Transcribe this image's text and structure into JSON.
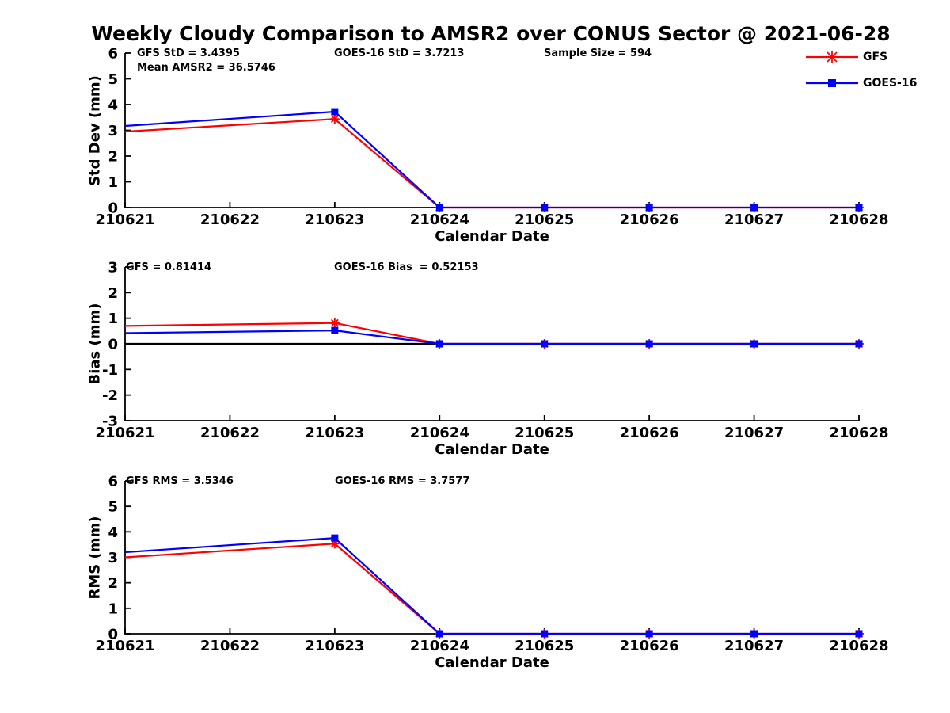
{
  "title": "Weekly Cloudy Comparison to AMSR2 over CONUS Sector @ 2021-06-28",
  "colors": {
    "gfs": "#ff0000",
    "goes16": "#0000ff",
    "axis": "#000000"
  },
  "legend": {
    "position": "top-right-outside",
    "entries": [
      {
        "label": "GFS",
        "color": "#ff0000",
        "marker": "asterisk"
      },
      {
        "label": "GOES-16",
        "color": "#0000ff",
        "marker": "square"
      }
    ]
  },
  "chart_data": [
    {
      "type": "line",
      "id": "stddev",
      "xlabel": "Calendar Date",
      "ylabel": "Std Dev (mm)",
      "categories": [
        "210621",
        "210622",
        "210623",
        "210624",
        "210625",
        "210626",
        "210627",
        "210628"
      ],
      "ylim": [
        0,
        6
      ],
      "yticks": [
        0,
        1,
        2,
        3,
        4,
        5,
        6
      ],
      "grid": false,
      "zero_line": false,
      "annotations": [
        "GFS StD = 3.4395",
        "Mean AMSR2 = 36.5746",
        "GOES-16 StD = 3.7213",
        "Sample Size = 594"
      ],
      "series": [
        {
          "name": "GFS",
          "color": "#ff0000",
          "marker": "asterisk",
          "first_point_marker": false,
          "values": [
            2.95,
            null,
            3.4395,
            0,
            0,
            0,
            0,
            0
          ]
        },
        {
          "name": "GOES-16",
          "color": "#0000ff",
          "marker": "square",
          "first_point_marker": false,
          "values": [
            3.17,
            null,
            3.7213,
            0,
            0,
            0,
            0,
            0
          ]
        }
      ]
    },
    {
      "type": "line",
      "id": "bias",
      "xlabel": "Calendar Date",
      "ylabel": "Bias (mm)",
      "categories": [
        "210621",
        "210622",
        "210623",
        "210624",
        "210625",
        "210626",
        "210627",
        "210628"
      ],
      "ylim": [
        -3,
        3
      ],
      "yticks": [
        3,
        2,
        1,
        0,
        -1,
        -2,
        -3
      ],
      "grid": false,
      "zero_line": true,
      "annotations": [
        "GFS = 0.81414",
        "GOES-16 Bias  = 0.52153"
      ],
      "series": [
        {
          "name": "GFS",
          "color": "#ff0000",
          "marker": "asterisk",
          "first_point_marker": false,
          "values": [
            0.7,
            null,
            0.81414,
            0,
            0,
            0,
            0,
            0
          ]
        },
        {
          "name": "GOES-16",
          "color": "#0000ff",
          "marker": "square",
          "first_point_marker": false,
          "values": [
            0.42,
            null,
            0.52153,
            0,
            0,
            0,
            0,
            0
          ]
        }
      ]
    },
    {
      "type": "line",
      "id": "rms",
      "xlabel": "Calendar Date",
      "ylabel": "RMS (mm)",
      "categories": [
        "210621",
        "210622",
        "210623",
        "210624",
        "210625",
        "210626",
        "210627",
        "210628"
      ],
      "ylim": [
        0,
        6
      ],
      "yticks": [
        0,
        1,
        2,
        3,
        4,
        5,
        6
      ],
      "grid": false,
      "zero_line": false,
      "annotations": [
        "GFS RMS = 3.5346",
        "GOES-16 RMS = 3.7577"
      ],
      "series": [
        {
          "name": "GFS",
          "color": "#ff0000",
          "marker": "asterisk",
          "first_point_marker": false,
          "values": [
            3.0,
            null,
            3.5346,
            0,
            0,
            0,
            0,
            0
          ]
        },
        {
          "name": "GOES-16",
          "color": "#0000ff",
          "marker": "square",
          "first_point_marker": false,
          "values": [
            3.2,
            null,
            3.7577,
            0,
            0,
            0,
            0,
            0
          ]
        }
      ]
    }
  ]
}
